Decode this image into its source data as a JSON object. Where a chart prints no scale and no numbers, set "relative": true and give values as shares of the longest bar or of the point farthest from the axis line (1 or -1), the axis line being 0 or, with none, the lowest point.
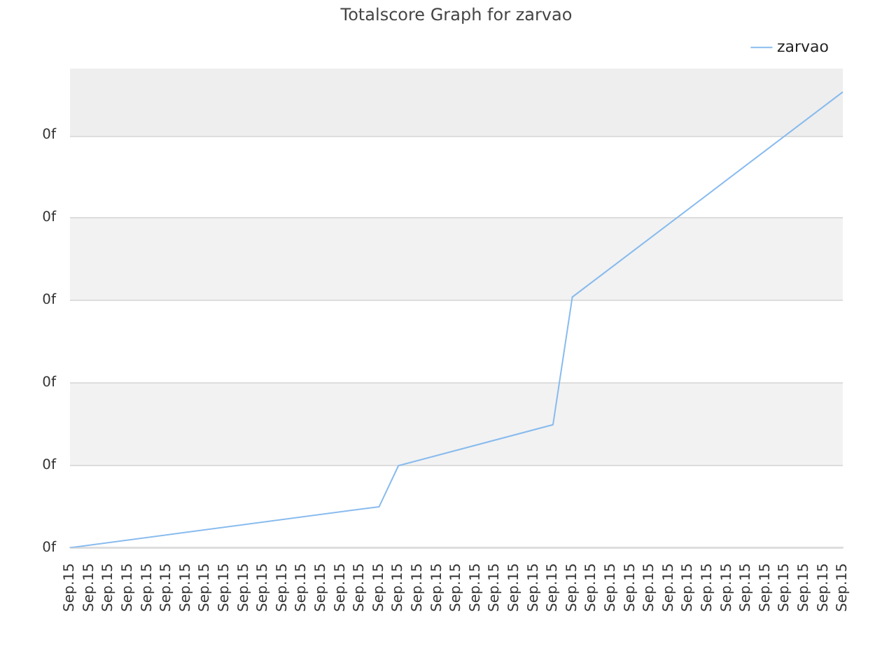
{
  "chart_data": {
    "type": "line",
    "title": "Totalscore Graph for zarvao",
    "legend": "top right",
    "grid": "y",
    "marker": "none",
    "relative": true,
    "categories": [
      "Sep.15",
      "Sep.15",
      "Sep.15",
      "Sep.15",
      "Sep.15",
      "Sep.15",
      "Sep.15",
      "Sep.15",
      "Sep.15",
      "Sep.15",
      "Sep.15",
      "Sep.15",
      "Sep.15",
      "Sep.15",
      "Sep.15",
      "Sep.15",
      "Sep.15",
      "Sep.15",
      "Sep.15",
      "Sep.15",
      "Sep.15",
      "Sep.15",
      "Sep.15",
      "Sep.15",
      "Sep.15",
      "Sep.15",
      "Sep.15",
      "Sep.15",
      "Sep.15",
      "Sep.15",
      "Sep.15",
      "Sep.15",
      "Sep.15",
      "Sep.15",
      "Sep.15",
      "Sep.15",
      "Sep.15",
      "Sep.15",
      "Sep.15",
      "Sep.15",
      "Sep.15"
    ],
    "annotations": [
      "0f",
      "0f",
      "0f",
      "0f",
      "0f",
      "0f"
    ],
    "series": [
      {
        "name": "zarvao",
        "color": "#88bbee",
        "values": [
          0,
          null,
          null,
          null,
          null,
          null,
          null,
          null,
          null,
          null,
          null,
          null,
          null,
          null,
          null,
          null,
          0.09,
          0.18,
          null,
          null,
          null,
          null,
          null,
          null,
          null,
          0.27,
          0.55,
          null,
          null,
          null,
          null,
          null,
          null,
          null,
          null,
          null,
          null,
          null,
          null,
          null,
          1
        ]
      }
    ]
  }
}
